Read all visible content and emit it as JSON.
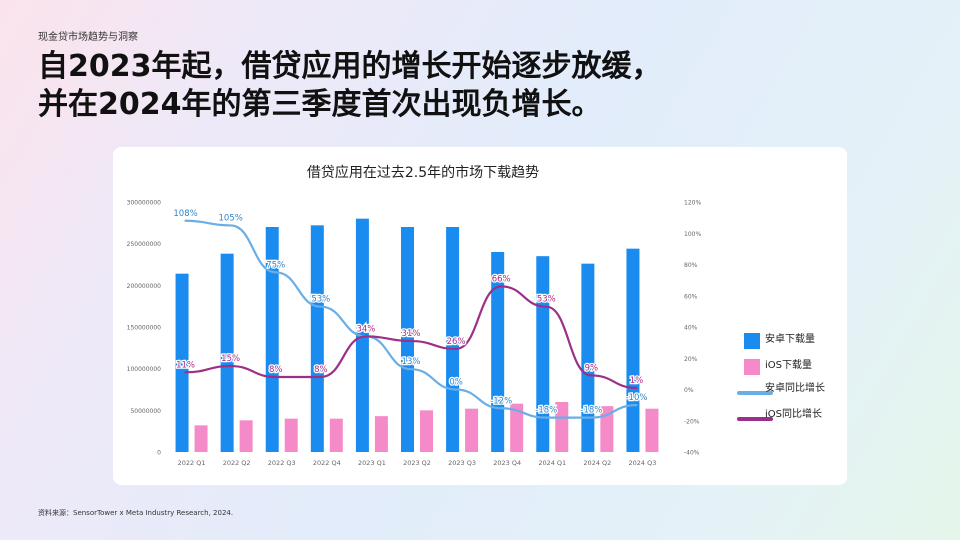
{
  "header": {
    "kicker": "现金贷市场趋势与洞察",
    "title_line1": "自2023年起，借贷应用的增长开始逐步放缓，",
    "title_line2": "并在2024年的第三季度首次出现负增长。"
  },
  "footer": {
    "source": "资料来源：SensorTower x Meta Industry Research, 2024."
  },
  "colors": {
    "android_bar": "#1a8cf0",
    "ios_bar": "#f58ac9",
    "android_line": "#6aaee6",
    "ios_line": "#9c2f88"
  },
  "chart_data": {
    "type": "bar",
    "title": "借贷应用在过去2.5年的市场下载趋势",
    "categories": [
      "2022 Q1",
      "2022 Q2",
      "2022 Q3",
      "2022 Q4",
      "2023 Q1",
      "2023 Q2",
      "2023 Q3",
      "2023 Q4",
      "2024 Q1",
      "2024 Q2",
      "2024 Q3"
    ],
    "left_axis": {
      "min": 0,
      "max": 300000000,
      "ticks": [
        "0",
        "50000000",
        "100000000",
        "150000000",
        "200000000",
        "250000000",
        "300000000"
      ]
    },
    "right_axis": {
      "min": -40,
      "max": 120,
      "ticks": [
        "-40%",
        "-20%",
        "0%",
        "20%",
        "40%",
        "60%",
        "80%",
        "100%",
        "120%"
      ]
    },
    "grid": false,
    "legend_position": "right",
    "series": [
      {
        "name": "安卓下载量",
        "type": "bar",
        "axis": "left",
        "values": [
          214000000,
          238000000,
          270000000,
          272000000,
          280000000,
          270000000,
          270000000,
          240000000,
          235000000,
          226000000,
          244000000
        ]
      },
      {
        "name": "iOS下载量",
        "type": "bar",
        "axis": "left",
        "values": [
          32000000,
          38000000,
          40000000,
          40000000,
          43000000,
          50000000,
          52000000,
          58000000,
          60000000,
          55000000,
          52000000
        ]
      },
      {
        "name": "安卓同比增长",
        "type": "line",
        "axis": "right",
        "values": [
          108,
          105,
          75,
          53,
          34,
          13,
          0,
          -12,
          -18,
          -18,
          -10
        ],
        "labels": [
          "108%",
          "105%",
          "75%",
          "53%",
          "34%",
          "13%",
          "0%",
          "-12%",
          "-18%",
          "-18%",
          "-10%"
        ]
      },
      {
        "name": "iOS同比增长",
        "type": "line",
        "axis": "right",
        "values": [
          11,
          15,
          8,
          8,
          34,
          31,
          26,
          66,
          53,
          9,
          1
        ],
        "labels": [
          "11%",
          "15%",
          "8%",
          "8%",
          "34%",
          "31%",
          "26%",
          "66%",
          "53%",
          "9%",
          "1%"
        ]
      }
    ]
  }
}
